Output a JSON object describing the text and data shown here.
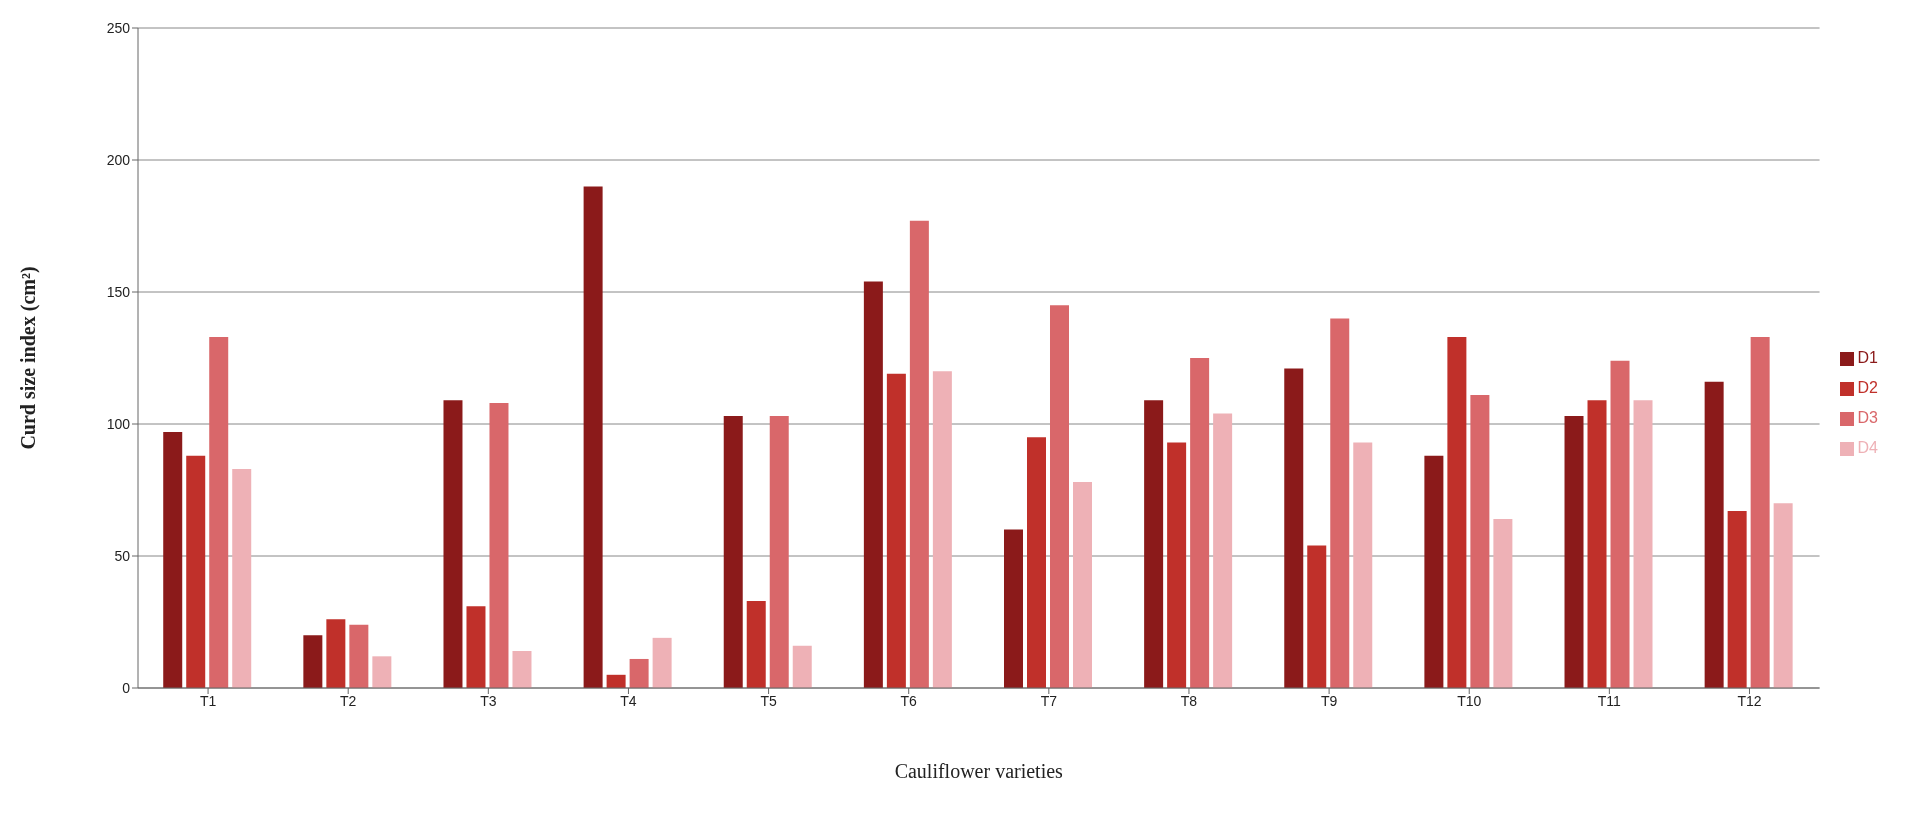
{
  "chart_data": {
    "type": "bar",
    "xlabel": "Cauliflower varieties",
    "ylabel": "Curd size index (cm²)",
    "categories": [
      "T1",
      "T2",
      "T3",
      "T4",
      "T5",
      "T6",
      "T7",
      "T8",
      "T9",
      "T10",
      "T11",
      "T12"
    ],
    "series": [
      {
        "name": "D1",
        "color": "#8b1a1a",
        "values": [
          97,
          20,
          109,
          190,
          103,
          154,
          60,
          109,
          121,
          88,
          103,
          116
        ]
      },
      {
        "name": "D2",
        "color": "#c0302a",
        "values": [
          88,
          26,
          31,
          5,
          33,
          119,
          95,
          93,
          54,
          133,
          109,
          67
        ]
      },
      {
        "name": "D3",
        "color": "#d9676a",
        "values": [
          133,
          24,
          108,
          11,
          103,
          177,
          145,
          125,
          140,
          111,
          124,
          133
        ]
      },
      {
        "name": "D4",
        "color": "#eeb1b6",
        "values": [
          83,
          12,
          14,
          19,
          16,
          120,
          78,
          104,
          93,
          64,
          109,
          70
        ]
      }
    ],
    "ylim": [
      0,
      250
    ],
    "yticks": [
      0,
      50,
      100,
      150,
      200,
      250
    ],
    "grid": "y",
    "legend": "right"
  }
}
